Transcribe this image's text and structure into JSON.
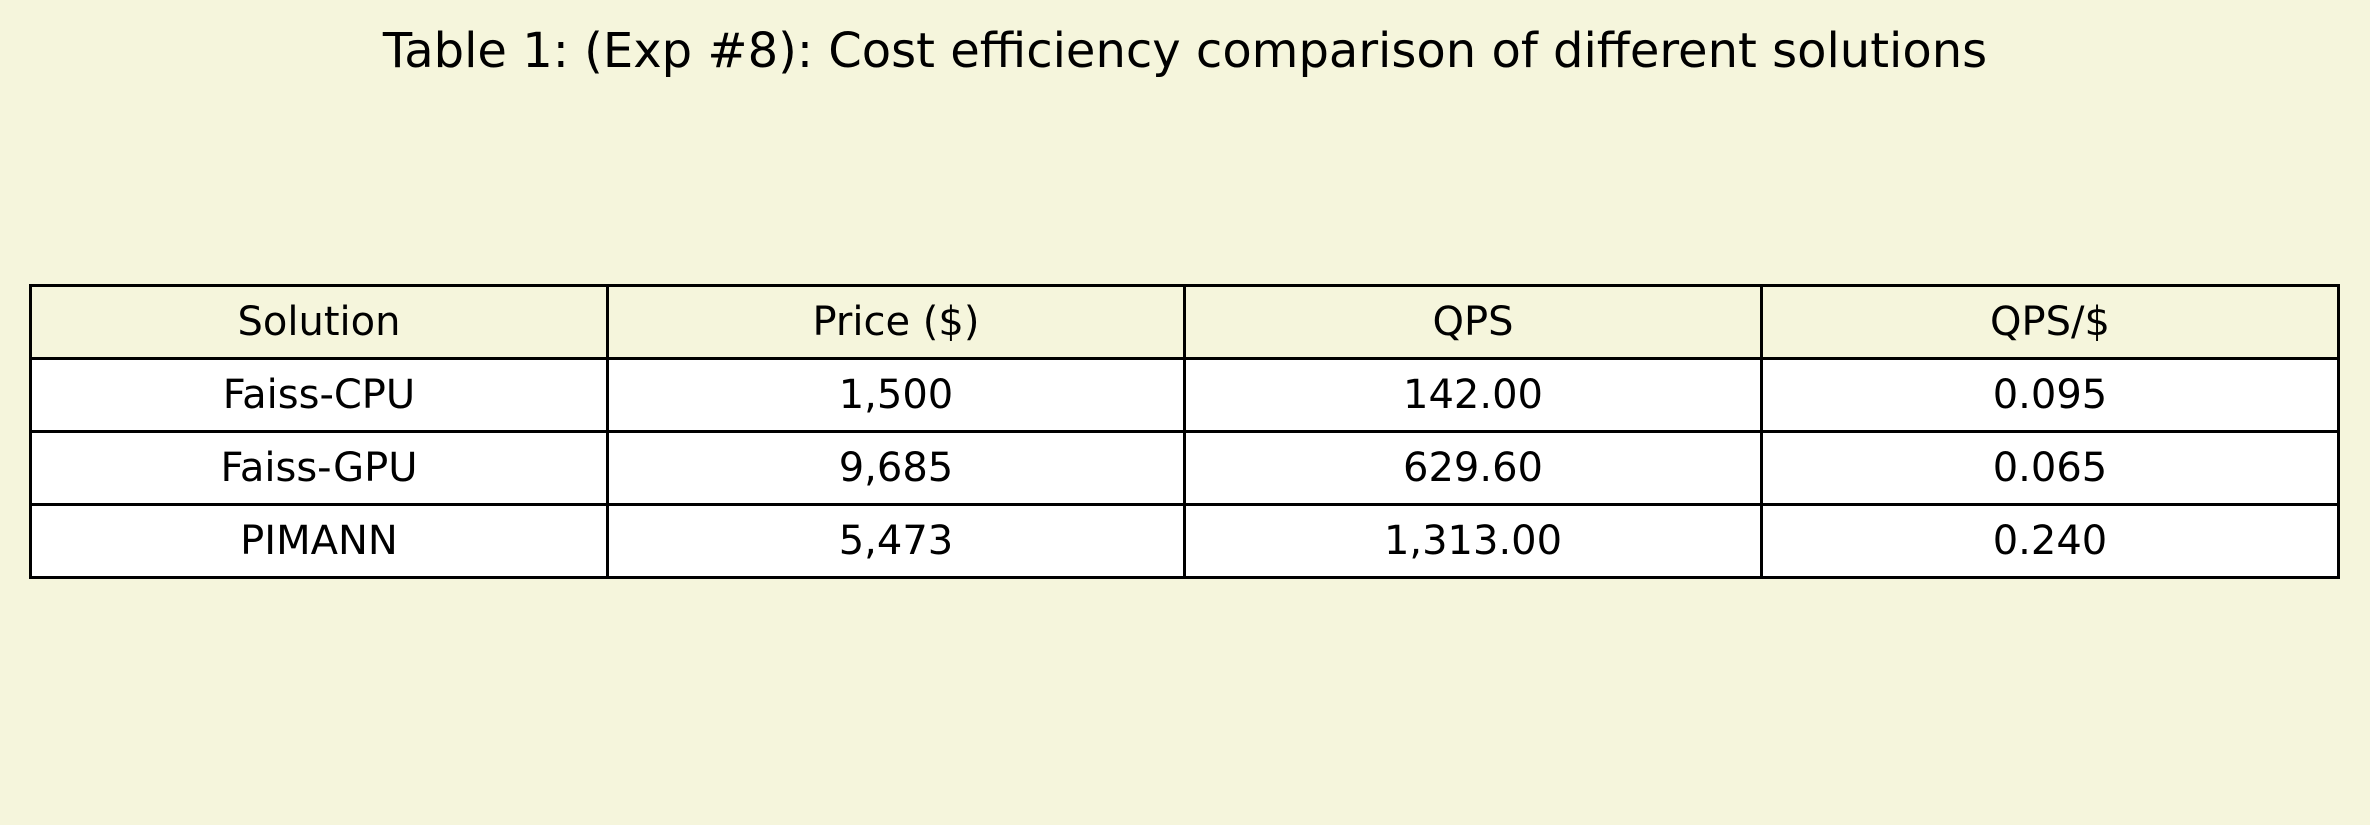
{
  "colors": {
    "page_background": "#f5f5dc",
    "header_background": "#f5f5dc",
    "body_cell_background": "#ffffff",
    "border": "#000000",
    "text": "#000000"
  },
  "chart_data": {
    "type": "table",
    "title": "Table 1: (Exp #8): Cost efficiency comparison of different solutions",
    "columns": [
      "Solution",
      "Price ($)",
      "QPS",
      "QPS/$"
    ],
    "rows": [
      [
        "Faiss-CPU",
        "1,500",
        "142.00",
        "0.095"
      ],
      [
        "Faiss-GPU",
        "9,685",
        "629.60",
        "0.065"
      ],
      [
        "PIMANN",
        "5,473",
        "1,313.00",
        "0.240"
      ]
    ]
  }
}
